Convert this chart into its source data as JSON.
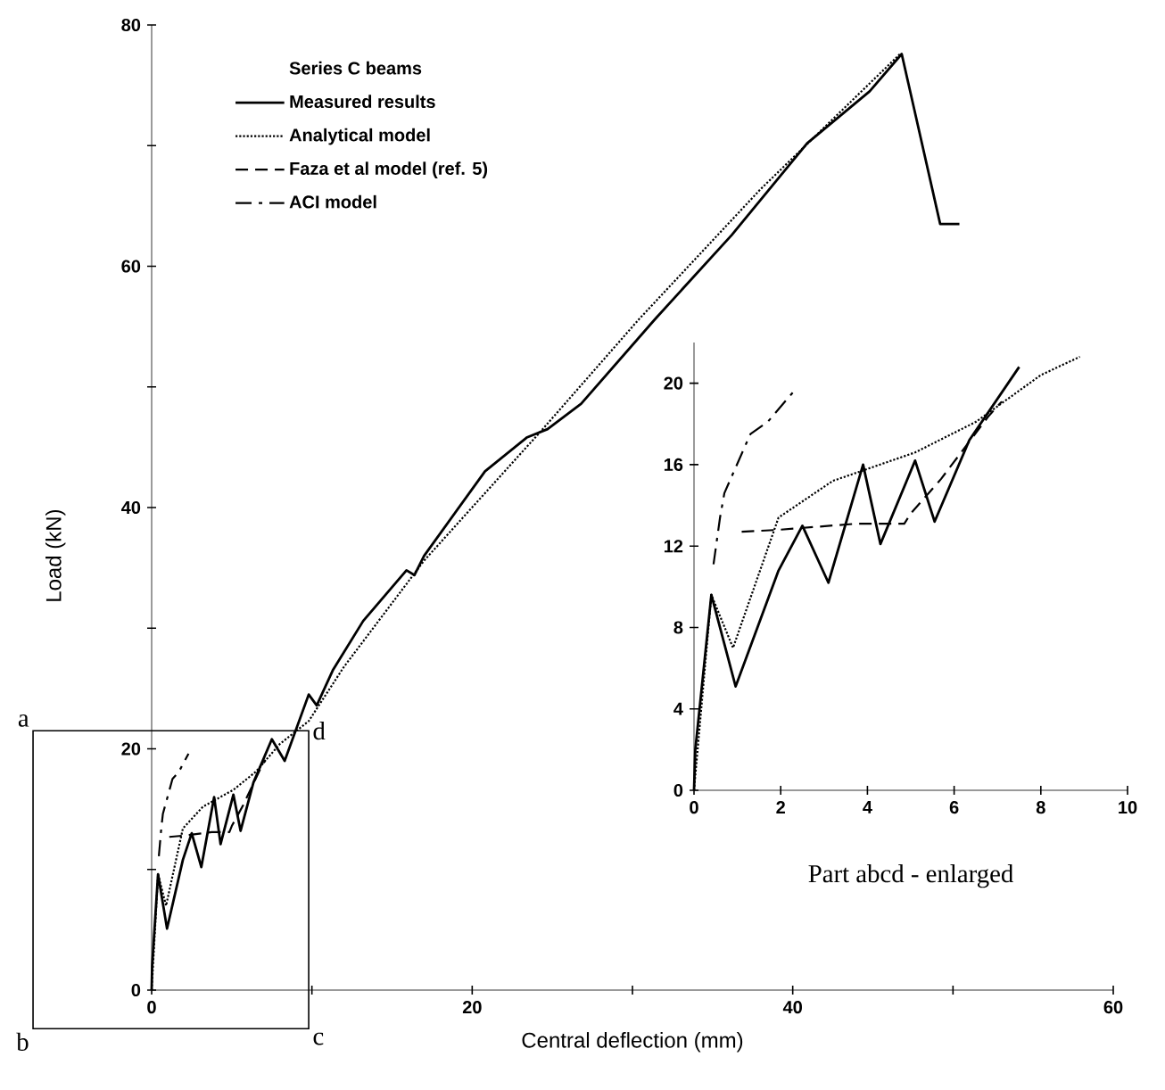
{
  "chart_data": [
    {
      "type": "line",
      "xlabel": "Central deflection (mm)",
      "ylabel": "Load (kN)",
      "legend_title": "Series C beams",
      "legend": "top left",
      "xlim": [
        0,
        60
      ],
      "ylim": [
        0,
        80
      ],
      "xticks": [
        0,
        {
          "value": 10,
          "label": null
        },
        20,
        {
          "value": 30,
          "label": null
        },
        40,
        {
          "value": 50,
          "label": null
        },
        60
      ],
      "yticks": [
        0,
        {
          "value": 10,
          "label": null
        },
        20,
        {
          "value": 30,
          "label": null
        },
        40,
        {
          "value": 50,
          "label": null
        },
        60,
        {
          "value": 70,
          "label": null
        },
        80
      ],
      "series": [
        {
          "name": "Measured results",
          "color": "#000000",
          "line_style": "solid",
          "x": [
            0,
            0.03,
            0.4,
            0.96,
            1.95,
            2.5,
            3.1,
            3.9,
            4.3,
            5.1,
            5.55,
            6.35,
            7.5,
            8.3,
            9.8,
            10.3,
            11.3,
            13.2,
            15.9,
            16.4,
            17,
            20.8,
            23.4,
            24.7,
            26.8,
            31.4,
            36.2,
            40.9,
            44.8,
            46.8,
            49.2,
            50.4
          ],
          "values": [
            0,
            2,
            9.6,
            5.1,
            10.8,
            13,
            10.2,
            16,
            12.1,
            16.2,
            13.2,
            17.2,
            20.8,
            19,
            24.5,
            23.6,
            26.5,
            30.6,
            34.8,
            34.4,
            36,
            43,
            45.8,
            46.5,
            48.6,
            55.6,
            62.6,
            70.2,
            74.5,
            77.6,
            63.5,
            63.5
          ]
        },
        {
          "name": "Analytical model",
          "color": "#000000",
          "line_style": "dotted",
          "x": [
            0,
            0.4,
            0.9,
            1.95,
            3.2,
            5.1,
            6.5,
            8,
            9.8,
            12,
            17,
            24.2,
            30.4,
            38,
            46.7
          ],
          "values": [
            0,
            9.6,
            7,
            13.4,
            15.2,
            16.6,
            18.1,
            20.4,
            22.3,
            26.8,
            35.6,
            46.2,
            55.6,
            66.4,
            77.6
          ]
        },
        {
          "name": "Faza et al model (ref. 5)",
          "color": "#000000",
          "line_style": "dashed",
          "x": [
            1.1,
            1.95,
            3.75,
            4.85,
            5,
            5.7,
            6.8,
            7.1
          ],
          "values": [
            12.7,
            12.8,
            13.1,
            13.1,
            13.6,
            15.3,
            18.4,
            19.1
          ]
        },
        {
          "name": "ACI model",
          "color": "#000000",
          "line_style": "dashdot",
          "x": [
            0.45,
            0.6,
            0.7,
            1.3,
            1.7,
            2.3
          ],
          "values": [
            11.1,
            13.4,
            14.6,
            17.5,
            18.1,
            19.6
          ]
        }
      ],
      "annotations": [
        "a",
        "b",
        "c",
        "d"
      ]
    },
    {
      "type": "line",
      "xlabel": "Part abcd - enlarged",
      "xlim": [
        0,
        10
      ],
      "ylim": [
        0,
        22
      ],
      "xticks": [
        0,
        2,
        4,
        6,
        8,
        10
      ],
      "yticks": [
        0,
        4,
        8,
        12,
        16,
        20
      ],
      "series": [
        {
          "color": "#000000",
          "line_style": "solid",
          "x": [
            0,
            0.03,
            0.4,
            0.96,
            1.95,
            2.5,
            3.1,
            3.9,
            4.3,
            5.1,
            5.55,
            6.35,
            7.5
          ],
          "values": [
            0,
            2,
            9.6,
            5.1,
            10.8,
            13,
            10.2,
            16,
            12.1,
            16.2,
            13.2,
            17.2,
            20.8
          ]
        },
        {
          "color": "#000000",
          "line_style": "dotted",
          "x": [
            0,
            0.4,
            0.9,
            1.95,
            3.2,
            5.1,
            6.5,
            8,
            8.9
          ],
          "values": [
            0,
            9.6,
            7,
            13.4,
            15.2,
            16.6,
            18.1,
            20.4,
            21.3
          ]
        },
        {
          "color": "#000000",
          "line_style": "dashed",
          "x": [
            1.1,
            1.95,
            3.75,
            4.85,
            5,
            5.7,
            6.8,
            7.1
          ],
          "values": [
            12.7,
            12.8,
            13.1,
            13.1,
            13.6,
            15.3,
            18.4,
            19.1
          ]
        },
        {
          "color": "#000000",
          "line_style": "dashdot",
          "x": [
            0.45,
            0.6,
            0.7,
            1.3,
            1.7,
            2.3
          ],
          "values": [
            11.1,
            13.4,
            14.6,
            17.5,
            18.1,
            19.6
          ]
        }
      ]
    }
  ]
}
